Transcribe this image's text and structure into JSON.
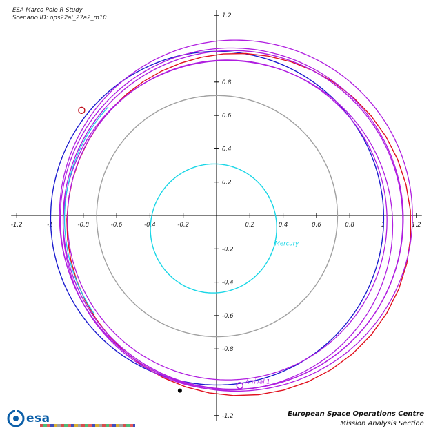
{
  "header": {
    "line1": "ESA Marco Polo R Study",
    "line2": "Scenario ID: ops22al_27a2_m10"
  },
  "footer": {
    "org": "European Space Operations Centre",
    "dept": "Mission Analysis Section",
    "logo_text": "esa"
  },
  "chart_data": {
    "type": "orbit-plot",
    "title": "",
    "xlabel": "",
    "ylabel": "",
    "xlim": [
      -1.2,
      1.2
    ],
    "ylim": [
      -1.2,
      1.2
    ],
    "x_ticks": [
      "-1.2",
      "-1",
      "-0.8",
      "-0.6",
      "-0.4",
      "-0.2",
      "0.2",
      "0.4",
      "0.6",
      "0.8",
      "1",
      "1.2"
    ],
    "y_ticks": [
      "1.2",
      "0.8",
      "0.6",
      "0.4",
      "0.2",
      "-0.2",
      "-0.4",
      "-0.6",
      "-0.8",
      "-1.2"
    ],
    "x_tick_values": [
      -1.2,
      -1.0,
      -0.8,
      -0.6,
      -0.4,
      -0.2,
      0.2,
      0.4,
      0.6,
      0.8,
      1.0,
      1.2
    ],
    "y_tick_values": [
      1.2,
      0.8,
      0.6,
      0.4,
      0.2,
      -0.2,
      -0.4,
      -0.6,
      -0.8,
      -1.2
    ],
    "colors": {
      "mercury": "#19d6e6",
      "venus": "#a0a0a0",
      "earth": "#1c1ccf",
      "asteroid": "#e0101e",
      "spacecraft": "#b01ee0",
      "spacecraft_cyan_arc": "#22c8e8"
    },
    "orbits": [
      {
        "body": "mercury",
        "label": "Mercury",
        "color": "#19d6e6",
        "a": 0.387,
        "e": 0.206,
        "omega_deg": 77,
        "label_at": [
          0.35,
          -0.18
        ]
      },
      {
        "body": "venus",
        "label": "",
        "color": "#a0a0a0",
        "a": 0.723,
        "e": 0.007,
        "omega_deg": 131
      },
      {
        "body": "earth",
        "label": "",
        "color": "#1c1ccf",
        "a": 1.0,
        "e": 0.0167,
        "omega_deg": 103
      },
      {
        "body": "asteroid",
        "label": "",
        "color": "#e0101e",
        "a": 1.035,
        "e": 0.14,
        "omega_deg": 158,
        "polygon": true
      },
      {
        "body": "spacecraft",
        "label": "",
        "color": "#b01ee0",
        "a": 1.02,
        "e": 0.1,
        "omega_deg": 165
      }
    ],
    "spacecraft_loops": [
      {
        "a": 1.03,
        "e": 0.11,
        "omega_deg": 170,
        "dx": -0.02,
        "dy": 0.0
      },
      {
        "a": 0.99,
        "e": 0.08,
        "omega_deg": 150,
        "dx": 0.0,
        "dy": -0.02
      },
      {
        "a": 0.96,
        "e": 0.06,
        "omega_deg": 140,
        "dx": 0.02,
        "dy": 0.01
      },
      {
        "a": 1.06,
        "e": 0.12,
        "omega_deg": 175,
        "dx": -0.01,
        "dy": 0.01
      }
    ],
    "markers": [
      {
        "name": "asteroid-departure-marker",
        "x": -0.81,
        "y": 0.63,
        "color": "#c0101e",
        "style": "ring",
        "label": ""
      },
      {
        "name": "arrival-marker",
        "x": 0.14,
        "y": -1.02,
        "color": "#b01ee0",
        "style": "ring",
        "label": "Arrival 1"
      },
      {
        "name": "earth-position-marker",
        "x": -0.22,
        "y": -1.05,
        "color": "#000000",
        "style": "dot",
        "label": ""
      }
    ]
  }
}
